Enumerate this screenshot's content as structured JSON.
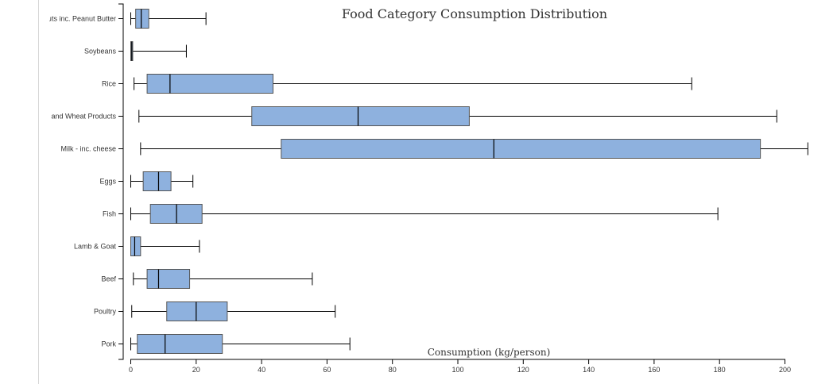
{
  "chart_data": {
    "type": "boxplot",
    "title": "Food Category Consumption Distribution",
    "xlabel": "Consumption (kg/person)",
    "ylabel": "",
    "xlim": [
      0,
      200
    ],
    "x_ticks": [
      0,
      20,
      40,
      60,
      80,
      100,
      120,
      140,
      160,
      180,
      200
    ],
    "grid": false,
    "box_color": "#8eb1de",
    "box_stroke": "#555555",
    "categories": [
      {
        "label": "Nuts inc. Peanut Butter",
        "min": 0.0,
        "q1": 1.5,
        "median": 3.2,
        "q3": 5.5,
        "max": 23.0
      },
      {
        "label": "Soybeans",
        "min": 0.0,
        "q1": 0.0,
        "median": 0.3,
        "q3": 0.6,
        "max": 17.0
      },
      {
        "label": "Rice",
        "min": 1.0,
        "q1": 5.0,
        "median": 12.0,
        "q3": 43.5,
        "max": 171.5
      },
      {
        "label": "Wheat and Wheat Products",
        "min": 2.5,
        "q1": 37.0,
        "median": 69.5,
        "q3": 103.5,
        "max": 197.5
      },
      {
        "label": "Milk - inc. cheese",
        "min": 3.0,
        "q1": 46.0,
        "median": 111.0,
        "q3": 192.5,
        "max": 207.0
      },
      {
        "label": "Eggs",
        "min": 0.0,
        "q1": 3.8,
        "median": 8.5,
        "q3": 12.3,
        "max": 19.0
      },
      {
        "label": "Fish",
        "min": 0.0,
        "q1": 6.0,
        "median": 14.0,
        "q3": 21.8,
        "max": 179.5
      },
      {
        "label": "Lamb & Goat",
        "min": 0.0,
        "q1": 0.0,
        "median": 1.2,
        "q3": 3.0,
        "max": 21.0
      },
      {
        "label": "Beef",
        "min": 0.8,
        "q1": 5.0,
        "median": 8.5,
        "q3": 18.0,
        "max": 55.5
      },
      {
        "label": "Poultry",
        "min": 0.3,
        "q1": 11.0,
        "median": 20.0,
        "q3": 29.5,
        "max": 62.5
      },
      {
        "label": "Pork",
        "min": 0.0,
        "q1": 2.0,
        "median": 10.5,
        "q3": 28.0,
        "max": 67.0
      }
    ]
  }
}
